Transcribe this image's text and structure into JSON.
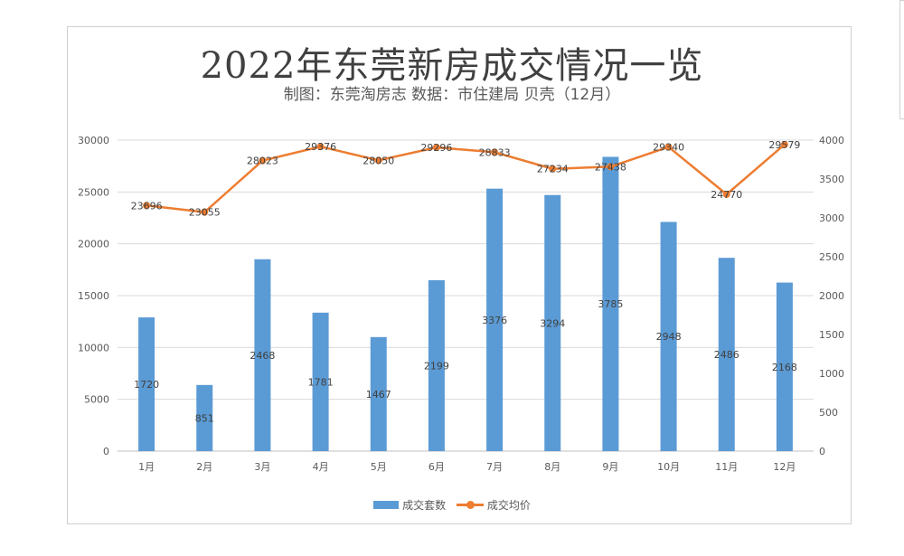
{
  "chart_data": {
    "type": "bar+line",
    "title": "2022年东莞新房成交情况一览",
    "subtitle": "制图：东莞淘房志 数据：市住建局 贝壳（12月）",
    "categories": [
      "1月",
      "2月",
      "3月",
      "4月",
      "5月",
      "6月",
      "7月",
      "8月",
      "9月",
      "10月",
      "11月",
      "12月"
    ],
    "series": [
      {
        "name": "成交套数",
        "type": "bar",
        "axis": "right",
        "color": "#5b9bd5",
        "values": [
          1720,
          851,
          2468,
          1781,
          1467,
          2199,
          3376,
          3294,
          3785,
          2948,
          2486,
          2168
        ]
      },
      {
        "name": "成交均价",
        "type": "line",
        "axis": "left",
        "color": "#ed7d31",
        "values": [
          23696,
          23055,
          28023,
          29376,
          28050,
          29296,
          28833,
          27234,
          27438,
          29340,
          24770,
          29579
        ]
      }
    ],
    "y_left": {
      "min": 0,
      "max": 30000,
      "ticks": [
        "0",
        "5000",
        "10000",
        "15000",
        "20000",
        "25000",
        "30000"
      ]
    },
    "y_right": {
      "min": 0,
      "max": 4000,
      "ticks": [
        "0",
        "500",
        "1000",
        "1500",
        "2000",
        "2500",
        "3000",
        "3500",
        "4000"
      ]
    },
    "grid": true,
    "legend": "bottom"
  }
}
